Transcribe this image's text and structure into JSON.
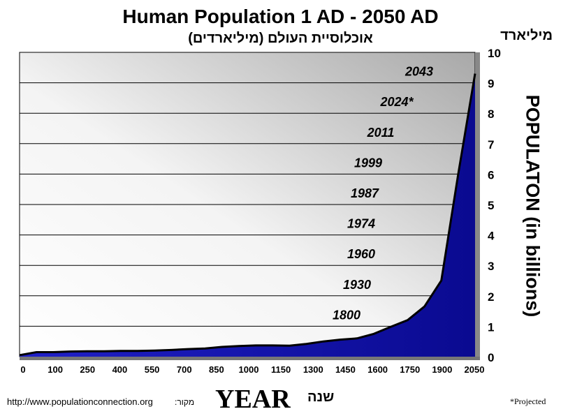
{
  "chart_data": {
    "type": "area",
    "title": "Human Population 1 AD - 2050 AD",
    "subtitle": "אוכלוסיית העולם (מיליארדים)",
    "ylabel": "POPULATON (in billions)",
    "ylabel_hebrew": "מיליארד",
    "xlabel": "YEAR",
    "xlabel_hebrew": "שנה",
    "ylim": [
      0,
      10
    ],
    "y_ticks": [
      "0",
      "1",
      "2",
      "3",
      "4",
      "5",
      "6",
      "7",
      "8",
      "9",
      "10"
    ],
    "x_ticks": [
      "0",
      "100",
      "250",
      "400",
      "550",
      "700",
      "850",
      "1000",
      "1150",
      "1300",
      "1450",
      "1600",
      "1750",
      "1900",
      "2050"
    ],
    "grid": true,
    "area_color": "#1a1ab8",
    "series": [
      {
        "values": [
          0.05,
          0.15,
          0.15,
          0.17,
          0.18,
          0.18,
          0.19,
          0.19,
          0.2,
          0.22,
          0.25,
          0.27,
          0.32,
          0.35,
          0.37,
          0.37,
          0.36,
          0.42,
          0.5,
          0.56,
          0.6,
          0.75,
          0.98,
          1.2,
          1.65,
          2.5,
          6.0,
          9.3
        ]
      }
    ],
    "annotations": [
      "2043",
      "2024*",
      "2011",
      "1999",
      "1987",
      "1974",
      "1960",
      "1930",
      "1800"
    ],
    "annotation_levels": [
      9,
      8,
      7,
      6,
      5,
      4,
      3,
      2,
      1
    ]
  },
  "footer": {
    "source_url": "http://www.populationconnection.org",
    "source_label": "מקור:",
    "projected_note": "*Projected"
  }
}
